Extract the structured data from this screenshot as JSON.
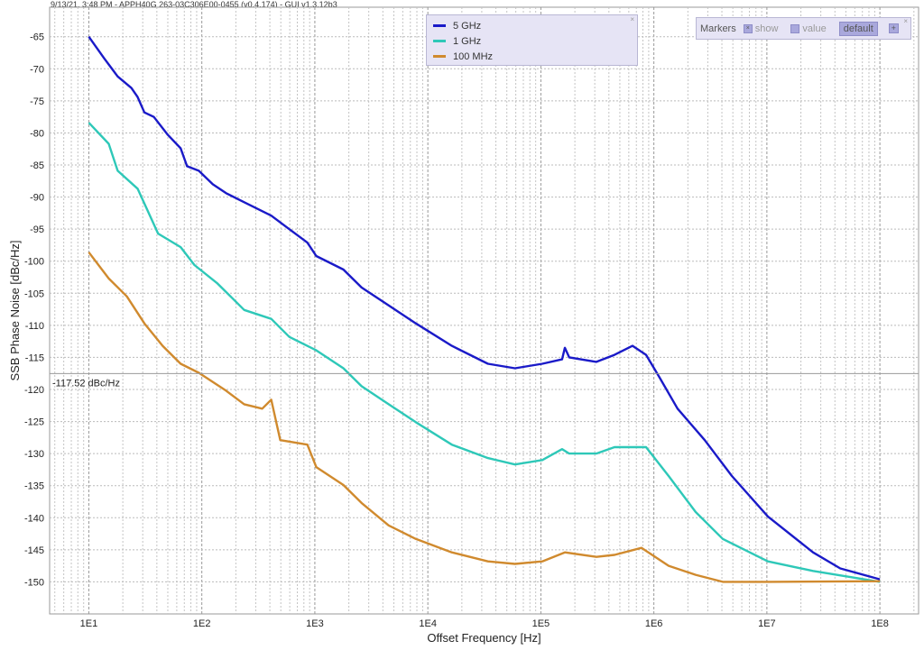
{
  "header": "9/13/21, 3:48 PM - APPH40G 263-03C306E00-0455 (v0.4.174) - GUI v1.3.12b3",
  "legend": {
    "close": "×",
    "items": [
      {
        "label": "5 GHz",
        "color": "#1a1ac8"
      },
      {
        "label": "1 GHz",
        "color": "#2ec8b8"
      },
      {
        "label": "100 MHz",
        "color": "#d08a2e"
      }
    ]
  },
  "markers": {
    "title": "Markers",
    "show": "show",
    "show_check": "×",
    "value": "value",
    "default": "default",
    "plus": "+",
    "close": "×"
  },
  "chart_data": {
    "type": "line",
    "xlabel": "Offset Frequency [Hz]",
    "ylabel": "SSB Phase Noise [dBc/Hz]",
    "xscale": "log",
    "xlim": [
      4.5,
      220000000.0
    ],
    "ylim": [
      -155,
      -60.4
    ],
    "xticks": [
      {
        "v": 10,
        "label": "1E1"
      },
      {
        "v": 100,
        "label": "1E2"
      },
      {
        "v": 1000,
        "label": "1E3"
      },
      {
        "v": 10000,
        "label": "1E4"
      },
      {
        "v": 100000,
        "label": "1E5"
      },
      {
        "v": 1000000,
        "label": "1E6"
      },
      {
        "v": 10000000,
        "label": "1E7"
      },
      {
        "v": 100000000,
        "label": "1E8"
      }
    ],
    "yticks": [
      -65,
      -70,
      -75,
      -80,
      -85,
      -90,
      -95,
      -100,
      -105,
      -110,
      -115,
      -120,
      -125,
      -130,
      -135,
      -140,
      -145,
      -150
    ],
    "grid": true,
    "legend_position": "top-center",
    "marker_line": {
      "value": -117.52,
      "label": "-117.52 dBc/Hz"
    },
    "series": [
      {
        "name": "5 GHz",
        "color": "#1a1ac8",
        "points": [
          [
            10,
            -65
          ],
          [
            13.7,
            -68.4
          ],
          [
            18,
            -71.2
          ],
          [
            23.8,
            -73
          ],
          [
            27,
            -74.4
          ],
          [
            31,
            -76.8
          ],
          [
            37.6,
            -77.5
          ],
          [
            50,
            -80.3
          ],
          [
            65,
            -82.4
          ],
          [
            74,
            -85.2
          ],
          [
            94,
            -85.9
          ],
          [
            125,
            -88
          ],
          [
            164,
            -89.4
          ],
          [
            237,
            -90.8
          ],
          [
            411,
            -92.9
          ],
          [
            594,
            -95
          ],
          [
            859,
            -97.1
          ],
          [
            1030,
            -99.2
          ],
          [
            1790,
            -101.3
          ],
          [
            2590,
            -104.1
          ],
          [
            4500,
            -106.9
          ],
          [
            7820,
            -109.7
          ],
          [
            16300,
            -113.2
          ],
          [
            34000,
            -116
          ],
          [
            59000,
            -116.7
          ],
          [
            103000,
            -116
          ],
          [
            154000,
            -115.3
          ],
          [
            163000,
            -113.5
          ],
          [
            178000,
            -115
          ],
          [
            310000,
            -115.7
          ],
          [
            448000,
            -114.6
          ],
          [
            647000,
            -113.2
          ],
          [
            853000,
            -114.6
          ],
          [
            1120000,
            -118.1
          ],
          [
            1620000,
            -123
          ],
          [
            2820000,
            -127.9
          ],
          [
            4900000,
            -133.5
          ],
          [
            10200000,
            -139.8
          ],
          [
            25600000,
            -145.4
          ],
          [
            44600000,
            -147.9
          ],
          [
            100000000,
            -149.6
          ]
        ]
      },
      {
        "name": "1 GHz",
        "color": "#2ec8b8",
        "points": [
          [
            10,
            -78.4
          ],
          [
            15,
            -81.7
          ],
          [
            18,
            -85.9
          ],
          [
            27,
            -88.7
          ],
          [
            41,
            -95.7
          ],
          [
            65,
            -97.8
          ],
          [
            86,
            -100.6
          ],
          [
            136,
            -103.4
          ],
          [
            237,
            -107.6
          ],
          [
            411,
            -109
          ],
          [
            594,
            -111.8
          ],
          [
            1030,
            -113.9
          ],
          [
            1790,
            -116.7
          ],
          [
            2590,
            -119.5
          ],
          [
            4500,
            -122.3
          ],
          [
            7820,
            -125.1
          ],
          [
            16300,
            -128.6
          ],
          [
            34000,
            -130.7
          ],
          [
            59000,
            -131.7
          ],
          [
            103000,
            -131
          ],
          [
            154000,
            -129.3
          ],
          [
            178000,
            -130
          ],
          [
            310000,
            -130
          ],
          [
            448000,
            -129
          ],
          [
            853000,
            -129
          ],
          [
            1350000,
            -133.5
          ],
          [
            2340000,
            -139.1
          ],
          [
            4070000,
            -143.3
          ],
          [
            10200000,
            -146.8
          ],
          [
            25600000,
            -148.3
          ],
          [
            100000000,
            -150
          ]
        ]
      },
      {
        "name": "100 MHz",
        "color": "#d08a2e",
        "points": [
          [
            10,
            -98.6
          ],
          [
            15,
            -102.7
          ],
          [
            21.7,
            -105.5
          ],
          [
            31,
            -109.7
          ],
          [
            45,
            -113.2
          ],
          [
            65,
            -116
          ],
          [
            94,
            -117.4
          ],
          [
            164,
            -120.2
          ],
          [
            237,
            -122.3
          ],
          [
            342,
            -123
          ],
          [
            411,
            -121.6
          ],
          [
            494,
            -127.9
          ],
          [
            859,
            -128.6
          ],
          [
            1030,
            -132.1
          ],
          [
            1790,
            -134.9
          ],
          [
            2590,
            -137.7
          ],
          [
            4500,
            -141.2
          ],
          [
            7820,
            -143.3
          ],
          [
            16300,
            -145.4
          ],
          [
            34000,
            -146.8
          ],
          [
            59000,
            -147.2
          ],
          [
            103000,
            -146.8
          ],
          [
            163000,
            -145.4
          ],
          [
            310000,
            -146.1
          ],
          [
            448000,
            -145.8
          ],
          [
            778000,
            -144.7
          ],
          [
            1350000,
            -147.5
          ],
          [
            2340000,
            -148.9
          ],
          [
            4070000,
            -150
          ],
          [
            10200000,
            -150
          ],
          [
            100000000,
            -149.9
          ]
        ]
      }
    ]
  }
}
